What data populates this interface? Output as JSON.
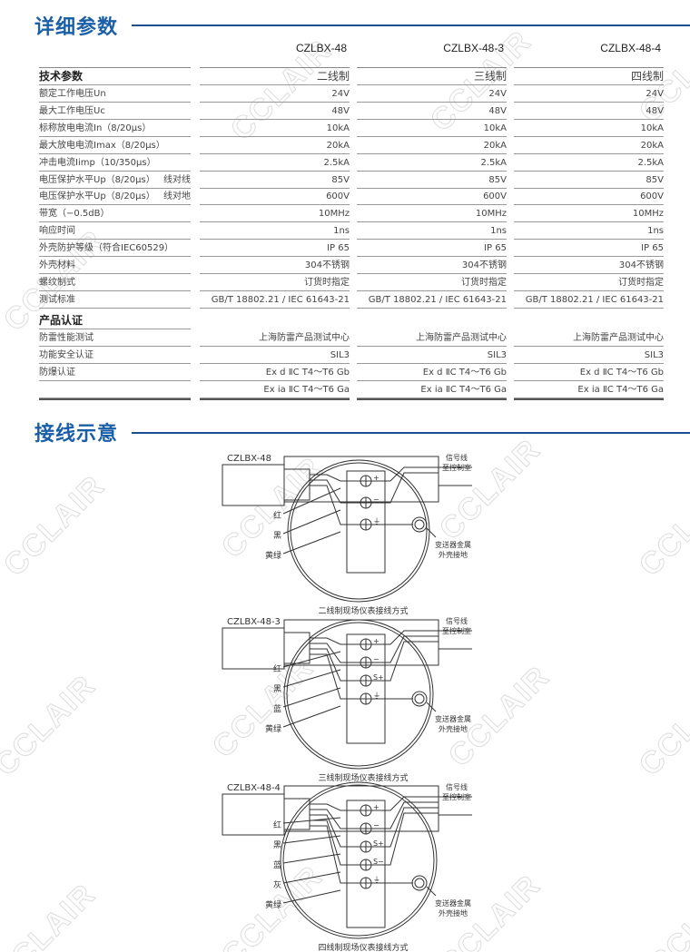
{
  "watermark": "CCLAIR",
  "params": {
    "title": "详细参数",
    "models": [
      "CZLBX-48",
      "CZLBX-48-3",
      "CZLBX-48-4"
    ],
    "header": {
      "label": "技术参数",
      "values": [
        "二线制",
        "三线制",
        "四线制"
      ]
    },
    "rows": [
      {
        "label": "额定工作电压Un",
        "values": [
          "24V",
          "24V",
          "24V"
        ]
      },
      {
        "label": "最大工作电压Uc",
        "values": [
          "48V",
          "48V",
          "48V"
        ]
      },
      {
        "label": "标称放电电流In（8/20μs）",
        "values": [
          "10kA",
          "10kA",
          "10kA"
        ]
      },
      {
        "label": "最大放电电流Imax（8/20μs）",
        "values": [
          "20kA",
          "20kA",
          "20kA"
        ]
      },
      {
        "label": "冲击电流Iimp（10/350μs）",
        "values": [
          "2.5kA",
          "2.5kA",
          "2.5kA"
        ]
      },
      {
        "label": "电压保护水平Up（8/20μs）",
        "sub": "线对线",
        "values": [
          "85V",
          "85V",
          "85V"
        ]
      },
      {
        "label": "电压保护水平Up（8/20μs）",
        "sub": "线对地",
        "values": [
          "600V",
          "600V",
          "600V"
        ]
      },
      {
        "label": "带宽（−0.5dB）",
        "values": [
          "10MHz",
          "10MHz",
          "10MHz"
        ]
      },
      {
        "label": "响应时间",
        "values": [
          "1ns",
          "1ns",
          "1ns"
        ]
      },
      {
        "label": "外壳防护等级（符合IEC60529）",
        "values": [
          "IP 65",
          "IP 65",
          "IP 65"
        ]
      },
      {
        "label": "外壳材料",
        "values": [
          "304不锈钢",
          "304不锈钢",
          "304不锈钢"
        ]
      },
      {
        "label": "螺纹制式",
        "values": [
          "订货时指定",
          "订货时指定",
          "订货时指定"
        ]
      },
      {
        "label": "测试标准",
        "values": [
          "GB/T 18802.21 / IEC 61643-21",
          "GB/T 18802.21 / IEC 61643-21",
          "GB/T 18802.21 / IEC 61643-21"
        ]
      }
    ],
    "cert_header": "产品认证",
    "cert_rows": [
      {
        "label": "防雷性能测试",
        "values": [
          "上海防雷产品测试中心",
          "上海防雷产品测试中心",
          "上海防雷产品测试中心"
        ]
      },
      {
        "label": "功能安全认证",
        "values": [
          "SIL3",
          "SIL3",
          "SIL3"
        ]
      },
      {
        "label": "防爆认证",
        "values": [
          "Ex d  ⅡC T4～T6  Gb",
          "Ex d  ⅡC T4～T6  Gb",
          "Ex d  ⅡC T4～T6  Gb"
        ]
      },
      {
        "label": "",
        "values": [
          "Ex ia  ⅡC T4～T6  Ga",
          "Ex ia  ⅡC T4～T6  Ga",
          "Ex ia  ⅡC T4～T6  Ga"
        ]
      }
    ]
  },
  "wiring": {
    "title": "接线示意",
    "diagrams": [
      {
        "model": "CZLBX-48",
        "terminals": [
          "+",
          "−",
          "⏚"
        ],
        "wires": [
          "红",
          "黑",
          "黄绿"
        ],
        "signal": [
          "信号线",
          "至控制室"
        ],
        "ground": [
          "变送器金属",
          "外壳接地"
        ],
        "caption": "二线制现场仪表接线方式"
      },
      {
        "model": "CZLBX-48-3",
        "terminals": [
          "+",
          "−",
          "S+",
          "⏚"
        ],
        "wires": [
          "红",
          "黑",
          "蓝",
          "黄绿"
        ],
        "signal": [
          "信号线",
          "至控制室"
        ],
        "ground": [
          "变送器金属",
          "外壳接地"
        ],
        "caption": "三线制现场仪表接线方式"
      },
      {
        "model": "CZLBX-48-4",
        "terminals": [
          "+",
          "−",
          "S+",
          "S−",
          "⏚"
        ],
        "wires": [
          "红",
          "黑",
          "蓝",
          "灰",
          "黄绿"
        ],
        "signal": [
          "信号线",
          "至控制室"
        ],
        "ground": [
          "变送器金属",
          "外壳接地"
        ],
        "caption": "四线制现场仪表接线方式"
      }
    ]
  }
}
